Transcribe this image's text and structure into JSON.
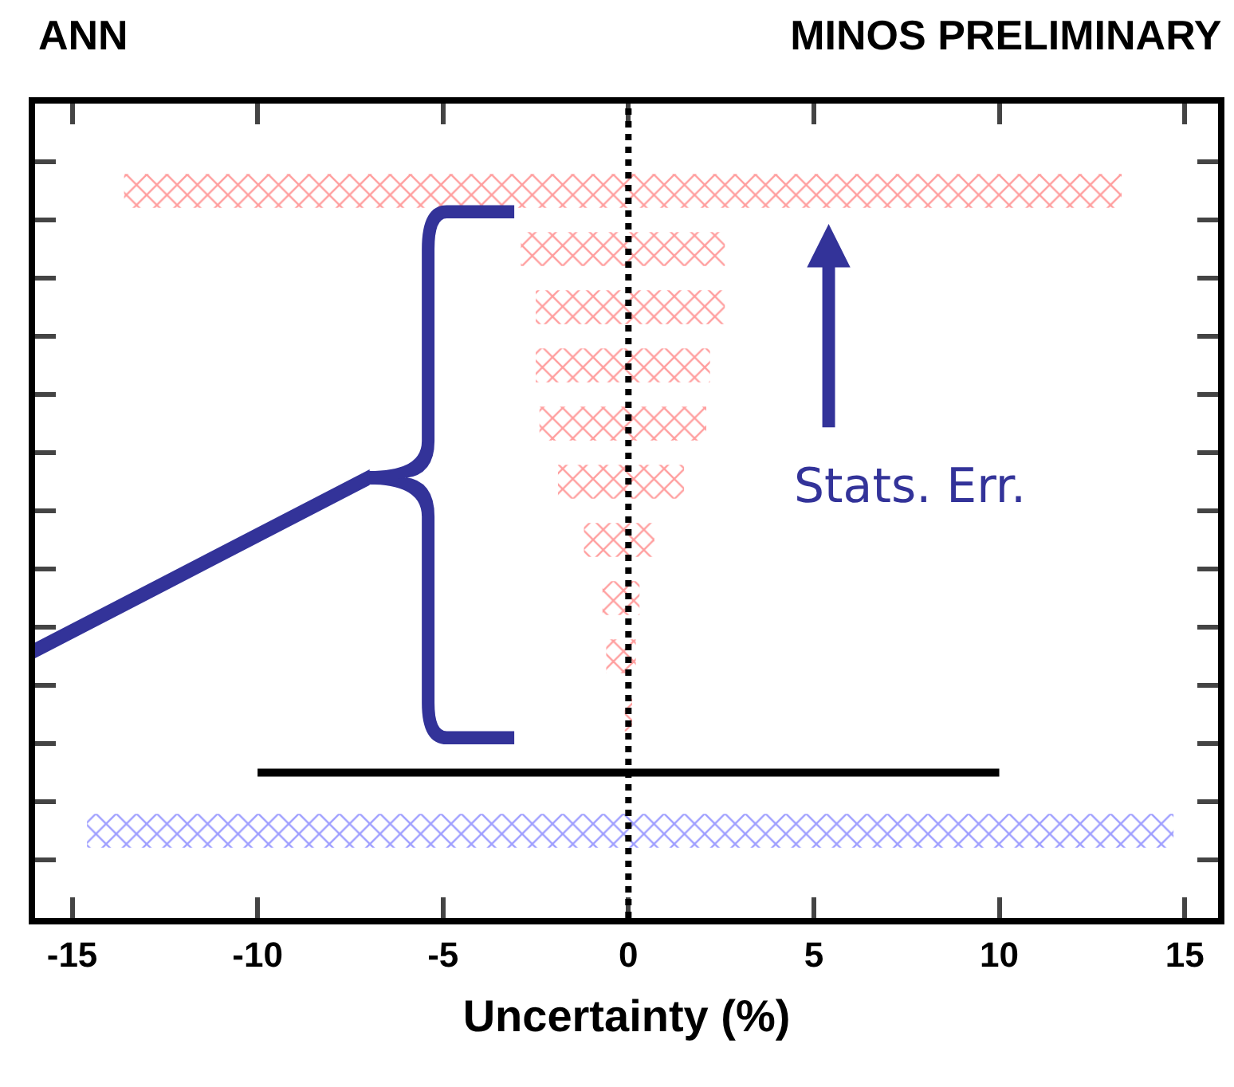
{
  "chart_data": {
    "type": "bar",
    "orientation": "horizontal",
    "title": "MINOS PRELIMINARY",
    "annotations": [
      "ANN",
      "Stats. Err."
    ],
    "xlabel": "Uncertainty (%)",
    "categories": [
      null,
      null,
      null,
      null,
      null,
      null,
      null,
      null,
      null,
      null,
      null,
      null,
      null,
      null
    ],
    "series": [
      {
        "colors": [
          null,
          "#ff4040",
          "#ff4040",
          "#ff4040",
          "#ff4040",
          "#ff4040",
          "#ff4040",
          "#ff4040",
          "#ff4040",
          "#ff4040",
          "#ff4040",
          null,
          "#4040ff",
          null
        ],
        "base": [
          null,
          -13.6,
          -2.9,
          -2.5,
          -2.5,
          -2.4,
          -1.9,
          -1.2,
          -0.7,
          -0.6,
          -0.1,
          null,
          -14.6,
          null
        ],
        "values": [
          null,
          26.9,
          5.5,
          5.1,
          4.7,
          4.5,
          3.4,
          1.9,
          1.0,
          0.8,
          0.2,
          null,
          29.3,
          null
        ]
      },
      {
        "color": "#000000",
        "base": [
          null,
          null,
          null,
          null,
          null,
          null,
          null,
          null,
          null,
          null,
          null,
          -10,
          null,
          null
        ],
        "values": [
          null,
          null,
          null,
          null,
          null,
          null,
          null,
          null,
          null,
          null,
          null,
          20,
          null,
          null
        ]
      }
    ],
    "xlim": [
      -16,
      15.9
    ],
    "xticks": [
      -15,
      -10,
      -5,
      0,
      5,
      10,
      15
    ],
    "tick_labels": "x",
    "ref_lines": [
      {
        "axis": "x",
        "value": 0,
        "line_style": "dotted",
        "color": "#000000"
      }
    ]
  }
}
